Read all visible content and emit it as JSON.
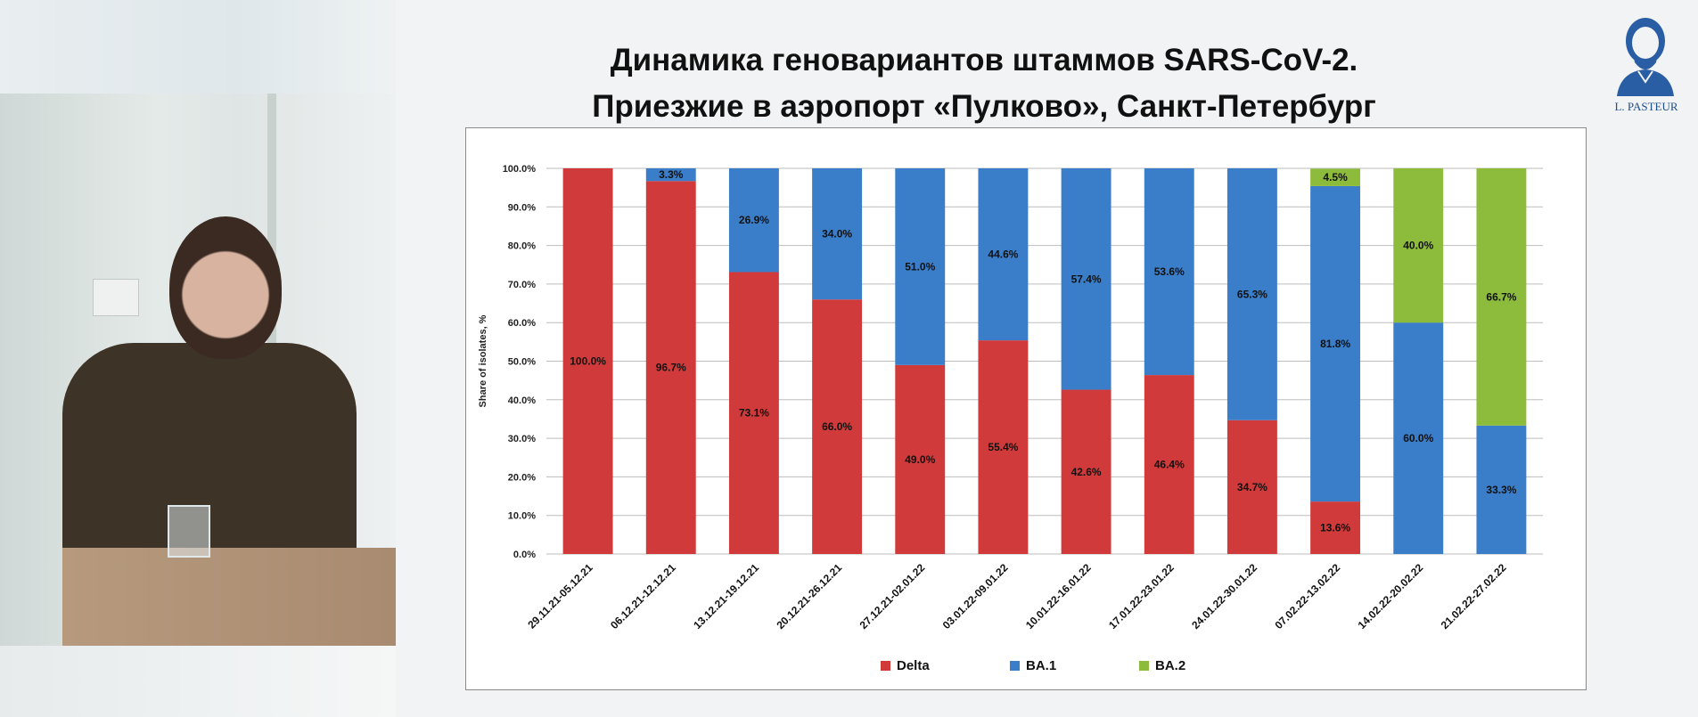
{
  "slide": {
    "title_line1": "Динамика геновариантов штаммов SARS-CoV-2.",
    "title_line2": "Приезжие в аэропорт «Пулково», Санкт-Петербург",
    "logo_text": "L. PASTEUR"
  },
  "chart_data": {
    "type": "bar",
    "stacked": true,
    "categories": [
      "29.11.21-05.12.21",
      "06.12.21-12.12.21",
      "13.12.21-19.12.21",
      "20.12.21-26.12.21",
      "27.12.21-02.01.22",
      "03.01.22-09.01.22",
      "10.01.22-16.01.22",
      "17.01.22-23.01.22",
      "24.01.22-30.01.22",
      "07.02.22-13.02.22",
      "14.02.22-20.02.22",
      "21.02.22-27.02.22"
    ],
    "series": [
      {
        "name": "Delta",
        "color": "#d13a3a",
        "values": [
          100.0,
          96.7,
          73.1,
          66.0,
          49.0,
          55.4,
          42.6,
          46.4,
          34.7,
          13.6,
          0,
          0
        ],
        "labels": [
          "100.0%",
          "96.7%",
          "73.1%",
          "66.0%",
          "49.0%",
          "55.4%",
          "42.6%",
          "46.4%",
          "34.7%",
          "13.6%",
          "",
          ""
        ]
      },
      {
        "name": "BA.1",
        "color": "#3a7dc9",
        "values": [
          0,
          3.3,
          26.9,
          34.0,
          51.0,
          44.6,
          57.4,
          53.6,
          65.3,
          81.8,
          60.0,
          33.3
        ],
        "labels": [
          "",
          "3.3%",
          "26.9%",
          "34.0%",
          "51.0%",
          "44.6%",
          "57.4%",
          "53.6%",
          "65.3%",
          "81.8%",
          "60.0%",
          "33.3%"
        ]
      },
      {
        "name": "BA.2",
        "color": "#8dbb3c",
        "values": [
          0,
          0,
          0,
          0,
          0,
          0,
          0,
          0,
          0,
          4.5,
          40.0,
          66.7
        ],
        "labels": [
          "",
          "",
          "",
          "",
          "",
          "",
          "",
          "",
          "",
          "4.5%",
          "40.0%",
          "66.7%"
        ]
      }
    ],
    "ylabel": "Share of isolates, %",
    "ylim": [
      0,
      100
    ],
    "yticks": [
      "0.0%",
      "10.0%",
      "20.0%",
      "30.0%",
      "40.0%",
      "50.0%",
      "60.0%",
      "70.0%",
      "80.0%",
      "90.0%",
      "100.0%"
    ],
    "grid": true,
    "legend_position": "bottom"
  }
}
